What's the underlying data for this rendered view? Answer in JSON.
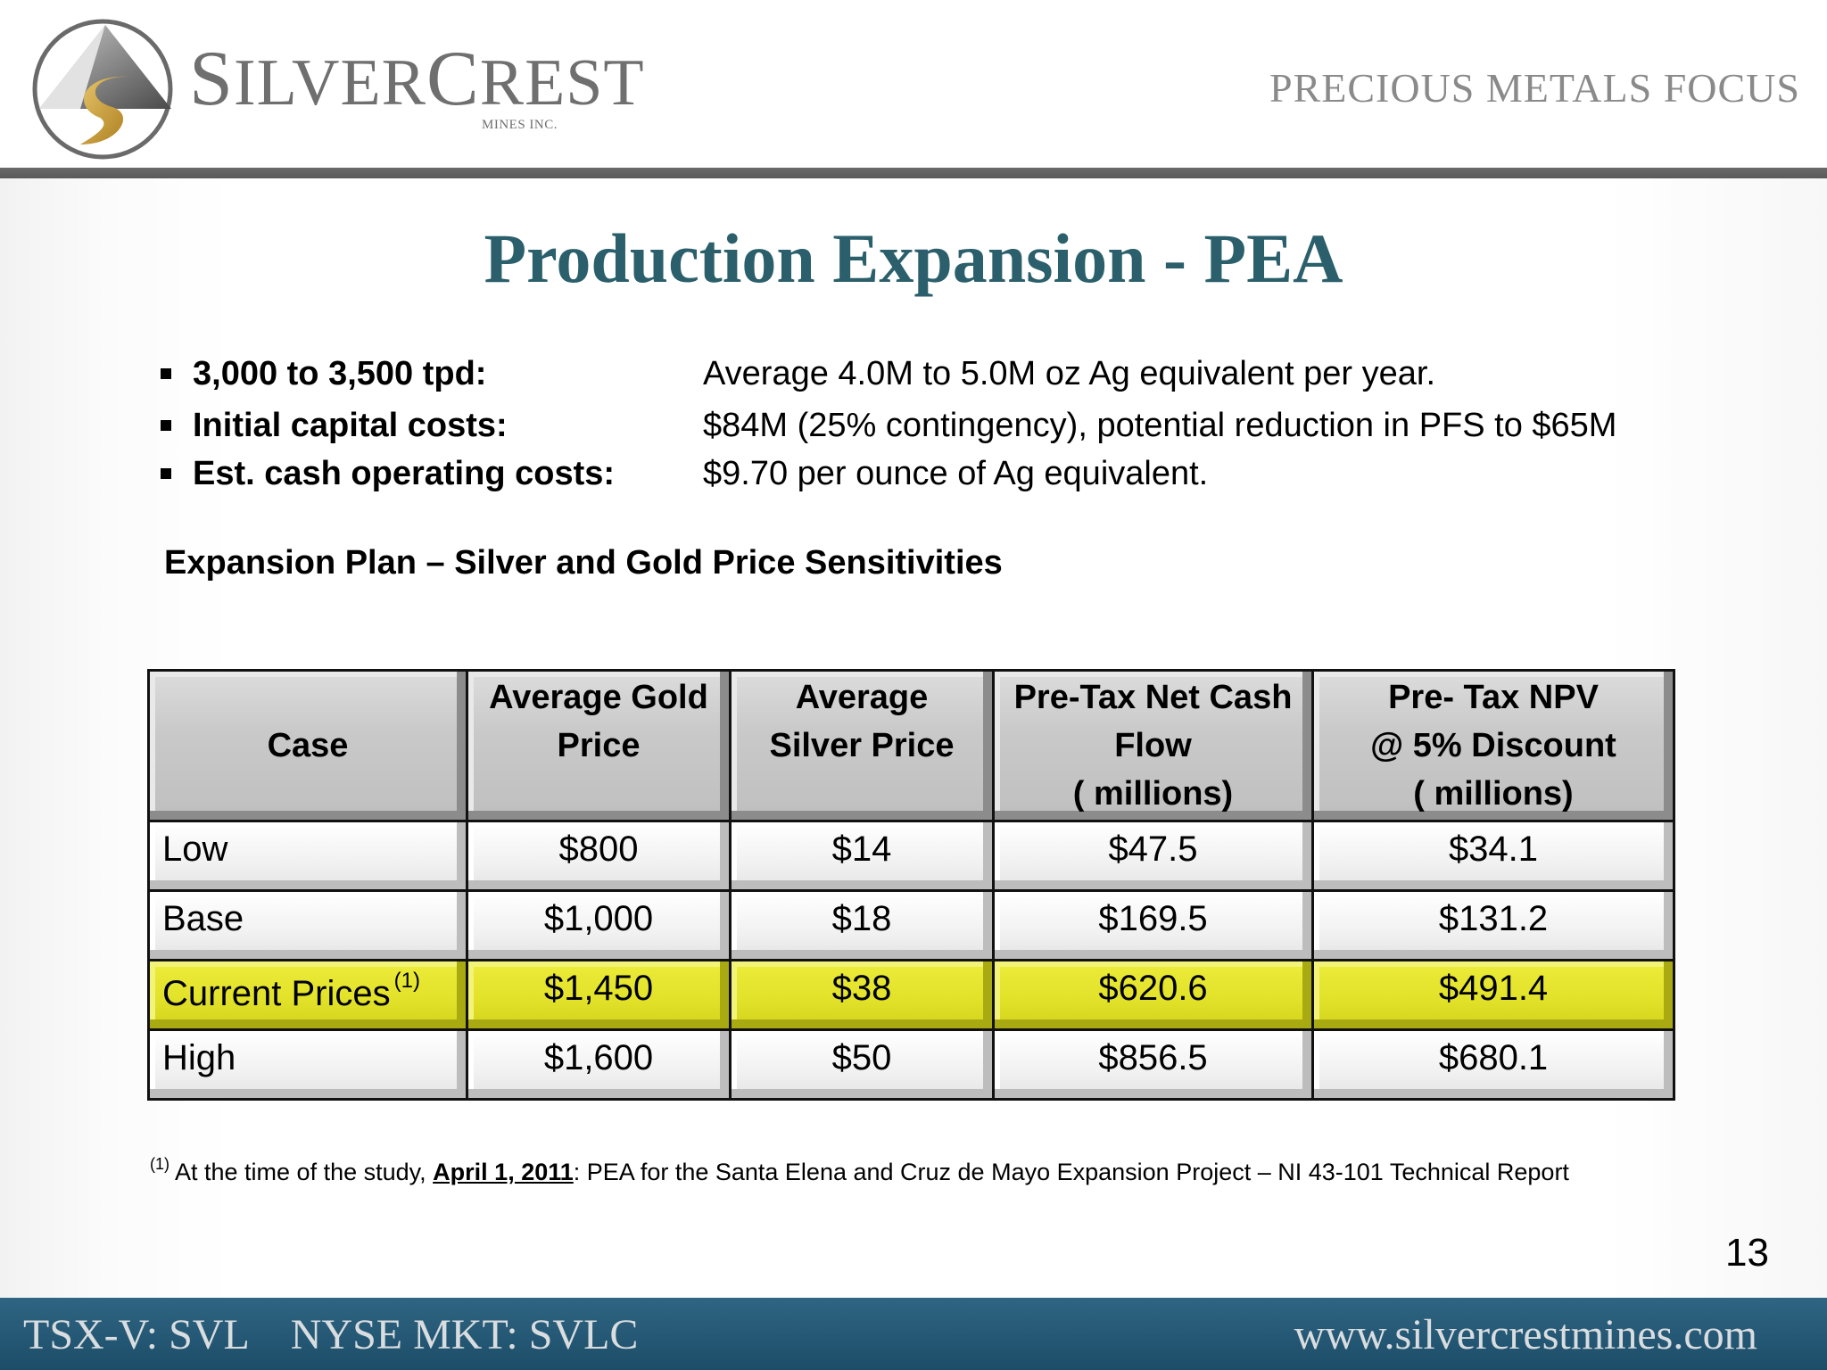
{
  "header": {
    "brand_name_first_letter": "S",
    "brand_name_rest": "ILVER",
    "brand_name_c": "C",
    "brand_name_end": "REST",
    "brand_sub": "MINES INC.",
    "tagline": "PRECIOUS METALS FOCUS"
  },
  "slide": {
    "title": "Production Expansion - PEA",
    "bullets": [
      {
        "label": "3,000 to 3,500 tpd:",
        "value": "Average 4.0M to 5.0M oz Ag equivalent per year."
      },
      {
        "label": "Initial capital costs:",
        "value": "$84M (25% contingency), potential reduction in PFS to $65M"
      },
      {
        "label": "Est. cash operating costs:",
        "value": "$9.70 per ounce of Ag equivalent."
      }
    ],
    "subhead": "Expansion Plan – Silver and Gold Price Sensitivities"
  },
  "table": {
    "headers": [
      {
        "lines": [
          "Case"
        ]
      },
      {
        "lines": [
          "Average Gold",
          "Price"
        ]
      },
      {
        "lines": [
          "Average",
          "Silver Price"
        ]
      },
      {
        "lines": [
          "Pre-Tax Net Cash",
          "Flow",
          "( millions)"
        ]
      },
      {
        "lines": [
          "Pre- Tax  NPV",
          "@ 5% Discount",
          "( millions)"
        ]
      }
    ],
    "rows": [
      {
        "case": "Low",
        "note": "",
        "gold": "$800",
        "silver": "$14",
        "cash_flow": "$47.5",
        "npv": "$34.1",
        "highlight": false
      },
      {
        "case": "Base",
        "note": "",
        "gold": "$1,000",
        "silver": "$18",
        "cash_flow": "$169.5",
        "npv": "$131.2",
        "highlight": false
      },
      {
        "case": "Current Prices",
        "note": "(1)",
        "gold": "$1,450",
        "silver": "$38",
        "cash_flow": "$620.6",
        "npv": "$491.4",
        "highlight": true
      },
      {
        "case": "High",
        "note": "",
        "gold": "$1,600",
        "silver": "$50",
        "cash_flow": "$856.5",
        "npv": "$680.1",
        "highlight": false
      }
    ]
  },
  "footnote": {
    "marker": "(1)",
    "prefix": "At the time of the study,",
    "date": "April 1, 2011",
    "suffix": ": PEA for the Santa Elena and Cruz de Mayo Expansion Project – NI 43-101 Technical Report"
  },
  "page_number": "13",
  "footer": {
    "ticker_tsx": "TSX-V: SVL",
    "ticker_nyse": "NYSE MKT: SVLC",
    "website": "www.silvercrestmines.com"
  },
  "colors": {
    "title": "#2a5f6b",
    "highlight_row": "#e2e22a",
    "footer_bar": "#1c4d68",
    "header_rule": "#5a5a5a"
  }
}
